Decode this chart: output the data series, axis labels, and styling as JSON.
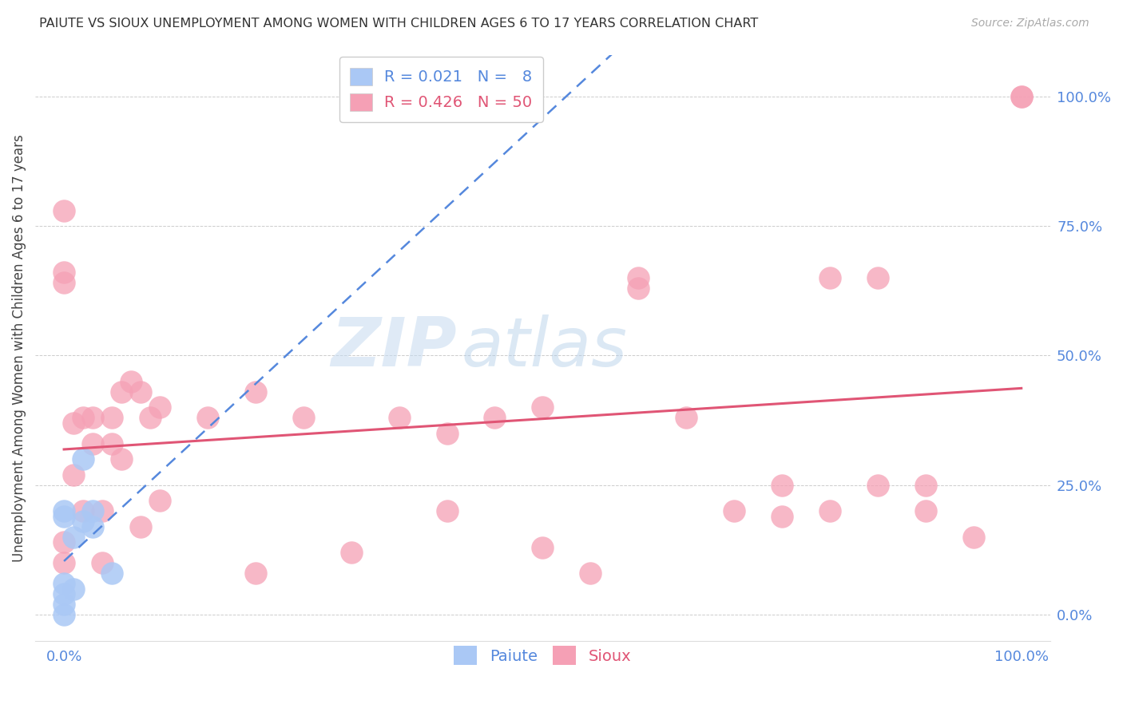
{
  "title": "PAIUTE VS SIOUX UNEMPLOYMENT AMONG WOMEN WITH CHILDREN AGES 6 TO 17 YEARS CORRELATION CHART",
  "source": "Source: ZipAtlas.com",
  "ylabel": "Unemployment Among Women with Children Ages 6 to 17 years",
  "ytick_labels": [
    "0.0%",
    "25.0%",
    "50.0%",
    "75.0%",
    "100.0%"
  ],
  "ytick_values": [
    0.0,
    0.25,
    0.5,
    0.75,
    1.0
  ],
  "paiute_color": "#aac8f5",
  "sioux_color": "#f5a0b5",
  "paiute_line_color": "#5588dd",
  "sioux_line_color": "#e05575",
  "watermark_zip": "ZIP",
  "watermark_atlas": "atlas",
  "paiute_x": [
    0.0,
    0.0,
    0.0,
    0.0,
    0.0,
    0.0,
    0.01,
    0.01,
    0.02,
    0.02,
    0.03,
    0.03,
    0.05
  ],
  "paiute_y": [
    0.0,
    0.02,
    0.04,
    0.06,
    0.2,
    0.19,
    0.05,
    0.15,
    0.18,
    0.3,
    0.17,
    0.2,
    0.08
  ],
  "sioux_x": [
    0.0,
    0.0,
    0.0,
    0.0,
    0.0,
    0.01,
    0.01,
    0.02,
    0.02,
    0.03,
    0.03,
    0.04,
    0.04,
    0.05,
    0.05,
    0.06,
    0.06,
    0.07,
    0.08,
    0.08,
    0.09,
    0.1,
    0.1,
    0.15,
    0.2,
    0.2,
    0.25,
    0.3,
    0.35,
    0.4,
    0.4,
    0.45,
    0.5,
    0.5,
    0.55,
    0.6,
    0.6,
    0.65,
    0.7,
    0.75,
    0.75,
    0.8,
    0.8,
    0.85,
    0.85,
    0.9,
    0.9,
    0.95,
    1.0,
    1.0
  ],
  "sioux_y": [
    0.78,
    0.66,
    0.64,
    0.14,
    0.1,
    0.37,
    0.27,
    0.38,
    0.2,
    0.38,
    0.33,
    0.2,
    0.1,
    0.38,
    0.33,
    0.43,
    0.3,
    0.45,
    0.43,
    0.17,
    0.38,
    0.4,
    0.22,
    0.38,
    0.43,
    0.08,
    0.38,
    0.12,
    0.38,
    0.35,
    0.2,
    0.38,
    0.4,
    0.13,
    0.08,
    0.65,
    0.63,
    0.38,
    0.2,
    0.25,
    0.19,
    0.65,
    0.2,
    0.25,
    0.65,
    0.25,
    0.2,
    0.15,
    1.0,
    1.0
  ],
  "sioux_R": 0.426,
  "paiute_R": 0.021,
  "xlim": [
    -0.03,
    1.03
  ],
  "ylim": [
    -0.05,
    1.08
  ]
}
